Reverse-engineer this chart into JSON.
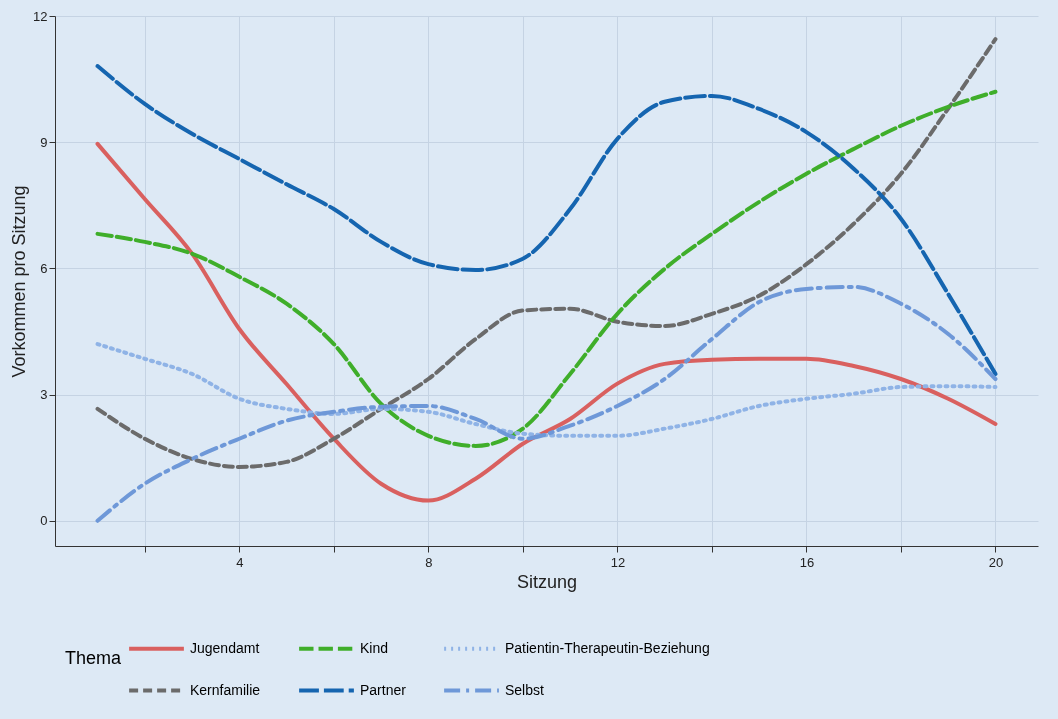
{
  "chart_data": {
    "type": "line",
    "xlabel": "Sitzung",
    "ylabel": "Vorkommen pro Sitzung",
    "legend_title": "Thema",
    "x": [
      1,
      2,
      3,
      4,
      5,
      6,
      7,
      8,
      9,
      10,
      11,
      12,
      13,
      14,
      15,
      16,
      17,
      18,
      19,
      20
    ],
    "xlim": [
      0.1,
      20.9
    ],
    "ylim": [
      -0.6,
      12
    ],
    "xticks": [
      {
        "value": 2,
        "label": null
      },
      4,
      {
        "value": 6,
        "label": null
      },
      8,
      {
        "value": 10,
        "label": null
      },
      12,
      {
        "value": 14,
        "label": null
      },
      16,
      {
        "value": 18,
        "label": null
      },
      20
    ],
    "yticks": [
      0,
      3,
      6,
      9,
      12
    ],
    "grid": true,
    "legend": "bottom",
    "series": [
      {
        "name": "Jugendamt",
        "color": "#d9605f",
        "line_style": "solid",
        "values": [
          8.96,
          7.65,
          6.35,
          4.56,
          3.25,
          1.95,
          0.88,
          0.48,
          1.0,
          1.83,
          2.42,
          3.26,
          3.73,
          3.83,
          3.85,
          3.85,
          3.68,
          3.37,
          2.9,
          2.3
        ]
      },
      {
        "name": "Kernfamilie",
        "color": "#6b6b6b",
        "line_style": "dashed",
        "values": [
          2.66,
          1.95,
          1.47,
          1.28,
          1.4,
          1.95,
          2.66,
          3.37,
          4.32,
          5.0,
          5.04,
          4.73,
          4.63,
          4.92,
          5.35,
          6.1,
          7.06,
          8.25,
          9.8,
          11.45
        ]
      },
      {
        "name": "Kind",
        "color": "#3fae2a",
        "line_style": "dashed",
        "values": [
          6.82,
          6.63,
          6.35,
          5.8,
          5.16,
          4.2,
          2.78,
          2.02,
          1.78,
          2.19,
          3.49,
          4.92,
          5.99,
          6.82,
          7.58,
          8.25,
          8.84,
          9.39,
          9.84,
          10.2
        ]
      },
      {
        "name": "Partner",
        "color": "#1565b0",
        "line_style": "dashed",
        "values": [
          10.81,
          9.91,
          9.2,
          8.6,
          8.0,
          7.41,
          6.63,
          6.1,
          5.96,
          6.23,
          7.41,
          9.08,
          9.96,
          10.1,
          9.79,
          9.24,
          8.37,
          7.18,
          5.39,
          3.49
        ]
      },
      {
        "name": "Patientin-Therapeutin-Beziehung",
        "color": "#8fb3e6",
        "line_style": "dotted",
        "values": [
          4.2,
          3.85,
          3.49,
          2.9,
          2.66,
          2.54,
          2.66,
          2.59,
          2.3,
          2.07,
          2.02,
          2.02,
          2.19,
          2.42,
          2.73,
          2.9,
          3.02,
          3.18,
          3.2,
          3.18
        ]
      },
      {
        "name": "Selbst",
        "color": "#6e98d8",
        "line_style": "dashdot",
        "values": [
          0.0,
          0.88,
          1.47,
          1.95,
          2.38,
          2.59,
          2.71,
          2.73,
          2.42,
          1.95,
          2.26,
          2.73,
          3.37,
          4.32,
          5.2,
          5.51,
          5.56,
          5.16,
          4.44,
          3.37
        ]
      }
    ]
  }
}
